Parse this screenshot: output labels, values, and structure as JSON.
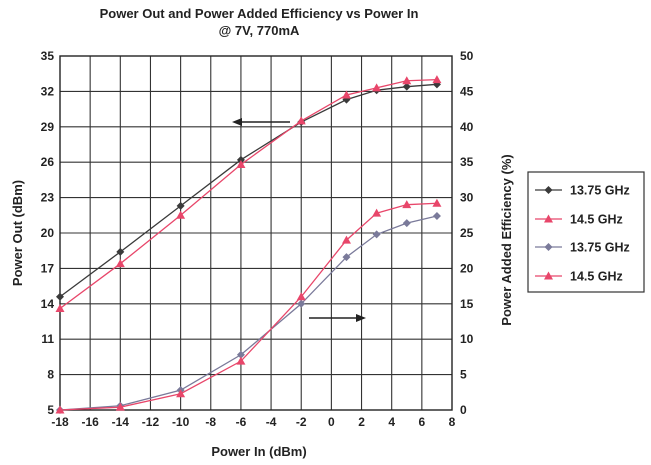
{
  "chart_data": {
    "type": "line",
    "title": "Power Out and Power Added Efficiency vs Power In",
    "subtitle": "@ 7V, 770mA",
    "xlabel": "Power In (dBm)",
    "ylabel_left": "Power Out (dBm)",
    "ylabel_right": "Power Added Efficiency (%)",
    "xlim": [
      -18,
      8
    ],
    "ylim_left": [
      5,
      35
    ],
    "ylim_right": [
      0,
      50
    ],
    "x_ticks": [
      "-18",
      "-16",
      "-14",
      "-12",
      "-10",
      "-8",
      "-6",
      "-4",
      "-2",
      "0",
      "2",
      "4",
      "6",
      "8"
    ],
    "y_left_ticks": [
      "5",
      "8",
      "11",
      "14",
      "17",
      "20",
      "23",
      "26",
      "29",
      "32",
      "35"
    ],
    "y_right_ticks": [
      "0",
      "5",
      "10",
      "15",
      "20",
      "25",
      "30",
      "35",
      "40",
      "45",
      "50"
    ],
    "grid": true,
    "legend_position": "right",
    "series": [
      {
        "name": "13.75 GHz",
        "axis": "left",
        "color": "#3a3a3a",
        "marker": "diamond",
        "x": [
          -18,
          -14,
          -10,
          -6,
          -2,
          1,
          3,
          5,
          7
        ],
        "y": [
          14.6,
          18.4,
          22.3,
          26.2,
          29.4,
          31.3,
          32.1,
          32.4,
          32.6
        ]
      },
      {
        "name": "14.5 GHz",
        "axis": "left",
        "color": "#e8466a",
        "marker": "triangle",
        "x": [
          -18,
          -14,
          -10,
          -6,
          -2,
          1,
          3,
          5,
          7
        ],
        "y": [
          13.6,
          17.4,
          21.5,
          25.8,
          29.5,
          31.7,
          32.3,
          32.9,
          33.0
        ]
      },
      {
        "name": "13.75 GHz",
        "axis": "right",
        "color": "#7a7a9a",
        "marker": "diamond",
        "x": [
          -18,
          -14,
          -10,
          -6,
          -2,
          1,
          3,
          5,
          7
        ],
        "y": [
          0.0,
          0.6,
          2.8,
          7.8,
          15.0,
          21.6,
          24.8,
          26.4,
          27.4
        ]
      },
      {
        "name": "14.5 GHz",
        "axis": "right",
        "color": "#e8466a",
        "marker": "triangle",
        "x": [
          -18,
          -14,
          -10,
          -6,
          -2,
          1,
          3,
          5,
          7
        ],
        "y": [
          0.0,
          0.4,
          2.3,
          6.9,
          16.0,
          24.0,
          27.8,
          29.0,
          29.2
        ]
      }
    ]
  }
}
